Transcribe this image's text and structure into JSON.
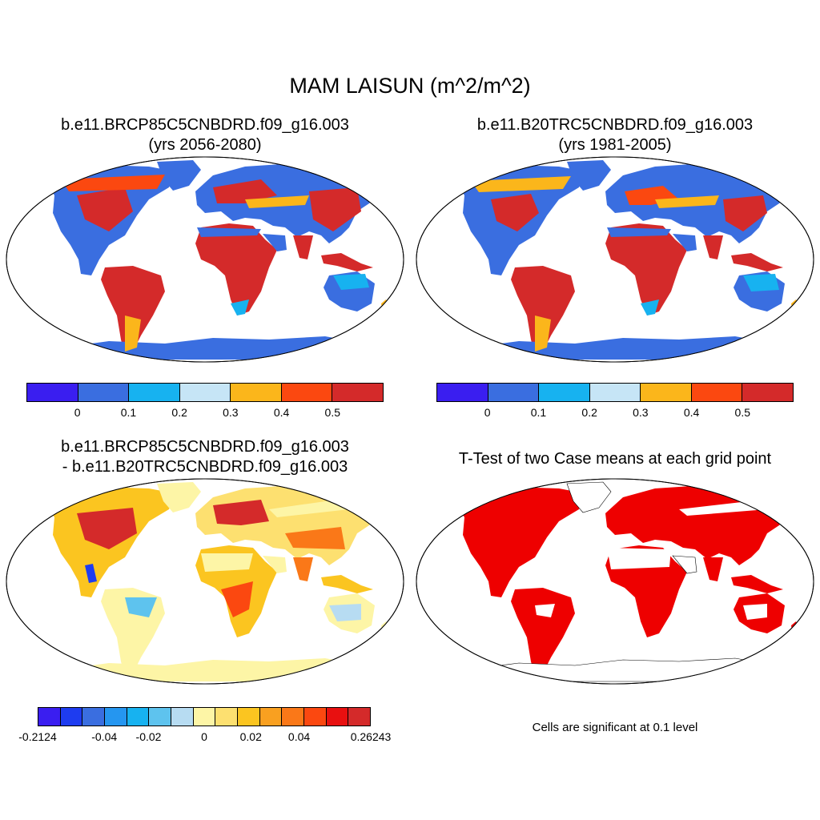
{
  "title": "MAM LAISUN (m^2/m^2)",
  "panels": [
    {
      "line1": "b.e11.BRCP85C5CNBDRD.f09_g16.003",
      "line2": "(yrs 2056-2080)"
    },
    {
      "line1": "b.e11.B20TRC5CNBDRD.f09_g16.003",
      "line2": "(yrs 1981-2005)"
    },
    {
      "line1": "b.e11.BRCP85C5CNBDRD.f09_g16.003",
      "line2": "- b.e11.B20TRC5CNBDRD.f09_g16.003"
    },
    {
      "line1": "T-Test of two Case means at each grid point",
      "line2": ""
    }
  ],
  "colorbar_top": {
    "colors": [
      "#3a1ef0",
      "#3a6ee0",
      "#17b2f0",
      "#c6e5f6",
      "#fbb61b",
      "#fb4810",
      "#d42a2a"
    ],
    "labels": [
      "0",
      "0.1",
      "0.2",
      "0.3",
      "0.4",
      "0.5"
    ]
  },
  "colorbar_diff": {
    "colors": [
      "#3a1ef0",
      "#1e3cf0",
      "#3a6ee0",
      "#2596f0",
      "#17b2f0",
      "#5ec3ee",
      "#b7dcf2",
      "#fdf5a6",
      "#fde070",
      "#fbc520",
      "#f9a020",
      "#fa7818",
      "#fb4810",
      "#e81010",
      "#d42a2a"
    ],
    "labels": [
      "-0.2124",
      "-0.04",
      "-0.02",
      "0",
      "0.02",
      "0.04",
      "0.26243"
    ]
  },
  "ttest_note": "Cells are significant at 0.1 level"
}
